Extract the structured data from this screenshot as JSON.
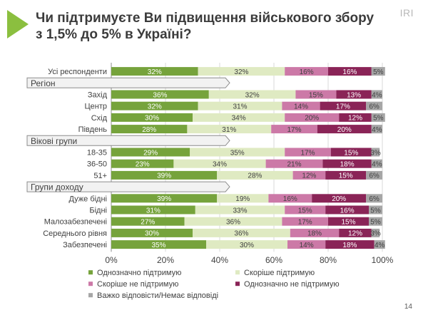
{
  "slide": {
    "title": "Чи підтримуєте Ви підвищення військового збору з 1,5% до 5% в Україні?",
    "brand": "IRI",
    "page_number": "14"
  },
  "colors": {
    "accent_triangle": "#8bbf3f",
    "strongly_support": "#76a33c",
    "somewhat_support": "#dfeac2",
    "somewhat_oppose": "#cc79a7",
    "strongly_oppose": "#8a2457",
    "dont_know": "#a6a6a6",
    "group_header_fill": "#f2f2f2",
    "group_header_border": "#8c8c8c"
  },
  "chart_data": {
    "type": "bar",
    "orientation": "horizontal",
    "stacked": true,
    "title": "Чи підтримуєте Ви підвищення військового збору з 1,5% до 5% в Україні?",
    "xlim": [
      0,
      100
    ],
    "x_ticks": [
      "0%",
      "20%",
      "40%",
      "60%",
      "80%",
      "100%"
    ],
    "legend_position": "bottom",
    "series": [
      {
        "name": "Однозначно підтримую",
        "color_key": "strongly_support"
      },
      {
        "name": "Скоріше підтримую",
        "color_key": "somewhat_support"
      },
      {
        "name": "Скоріше не підтримую",
        "color_key": "somewhat_oppose"
      },
      {
        "name": "Однозначно не підтримую",
        "color_key": "strongly_oppose"
      },
      {
        "name": "Важко відповісти/Немає відповіді",
        "color_key": "dont_know"
      }
    ],
    "rows": [
      {
        "kind": "bar",
        "label": "Усі респонденти",
        "values": [
          32,
          32,
          16,
          16,
          5
        ],
        "labels": [
          "32%",
          "32%",
          "16%",
          "16%",
          "5%"
        ]
      },
      {
        "kind": "group",
        "label": "Регіон"
      },
      {
        "kind": "bar",
        "label": "Захід",
        "values": [
          36,
          32,
          15,
          13,
          4
        ],
        "labels": [
          "36%",
          "32%",
          "15%",
          "13%",
          "4%"
        ]
      },
      {
        "kind": "bar",
        "label": "Центр",
        "values": [
          32,
          31,
          14,
          17,
          6
        ],
        "labels": [
          "32%",
          "31%",
          "14%",
          "17%",
          "6%"
        ]
      },
      {
        "kind": "bar",
        "label": "Схід",
        "values": [
          30,
          34,
          20,
          12,
          5
        ],
        "labels": [
          "30%",
          "34%",
          "20%",
          "12%",
          "5%"
        ]
      },
      {
        "kind": "bar",
        "label": "Південь",
        "values": [
          28,
          31,
          17,
          20,
          4
        ],
        "labels": [
          "28%",
          "31%",
          "17%",
          "20%",
          "4%"
        ]
      },
      {
        "kind": "group",
        "label": "Вікові групи"
      },
      {
        "kind": "bar",
        "label": "18-35",
        "values": [
          29,
          35,
          17,
          15,
          3
        ],
        "labels": [
          "29%",
          "35%",
          "17%",
          "15%",
          "3%"
        ]
      },
      {
        "kind": "bar",
        "label": "36-50",
        "values": [
          23,
          34,
          21,
          18,
          4
        ],
        "labels": [
          "23%",
          "34%",
          "21%",
          "18%",
          "4%"
        ]
      },
      {
        "kind": "bar",
        "label": "51+",
        "values": [
          39,
          28,
          12,
          15,
          6
        ],
        "labels": [
          "39%",
          "28%",
          "12%",
          "15%",
          "6%"
        ]
      },
      {
        "kind": "group",
        "label": "Групи доходу"
      },
      {
        "kind": "bar",
        "label": "Дуже бідні",
        "values": [
          39,
          19,
          16,
          20,
          6
        ],
        "labels": [
          "39%",
          "19%",
          "16%",
          "20%",
          "6%"
        ]
      },
      {
        "kind": "bar",
        "label": "Бідні",
        "values": [
          31,
          33,
          15,
          16,
          5
        ],
        "labels": [
          "31%",
          "33%",
          "15%",
          "16%",
          "5%"
        ]
      },
      {
        "kind": "bar",
        "label": "Малозабезпечені",
        "values": [
          27,
          36,
          17,
          15,
          5
        ],
        "labels": [
          "27%",
          "36%",
          "17%",
          "15%",
          "5%"
        ]
      },
      {
        "kind": "bar",
        "label": "Середнього рівня",
        "values": [
          30,
          36,
          18,
          12,
          3
        ],
        "labels": [
          "30%",
          "36%",
          "18%",
          "12%",
          "3%"
        ]
      },
      {
        "kind": "bar",
        "label": "Забезпечені",
        "values": [
          35,
          30,
          14,
          18,
          4
        ],
        "labels": [
          "35%",
          "30%",
          "14%",
          "18%",
          "4%"
        ]
      }
    ]
  }
}
